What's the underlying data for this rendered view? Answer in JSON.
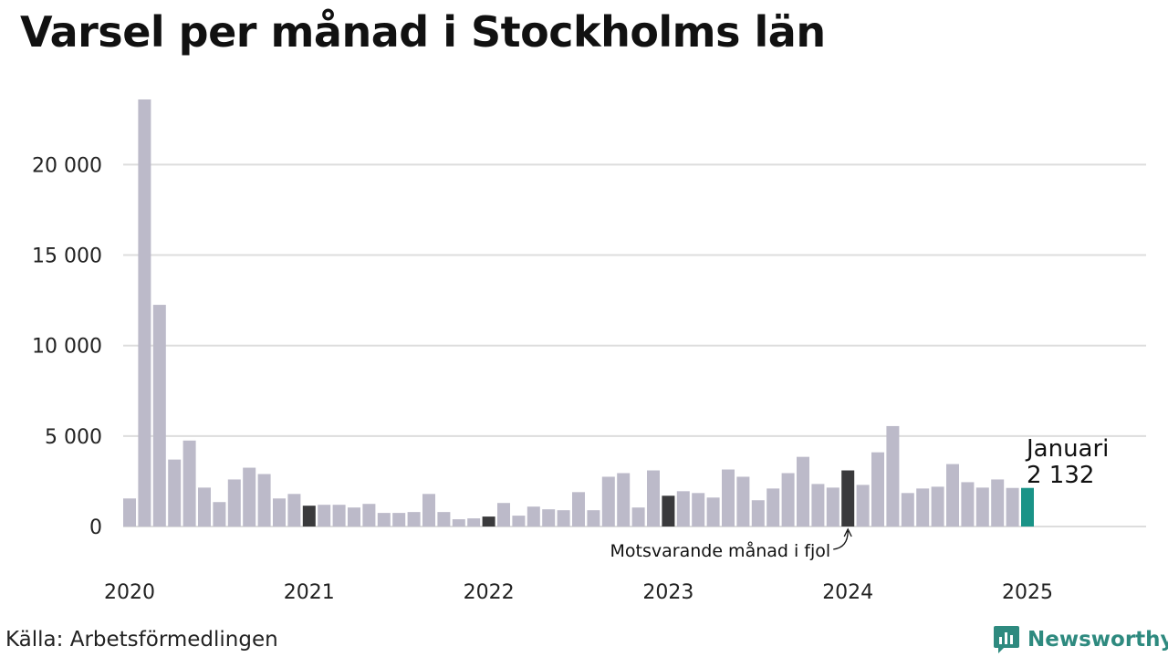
{
  "title": "Varsel per månad i Stockholms län",
  "source": "Källa: Arbetsförmedlingen",
  "brand": "Newsworthy",
  "colors": {
    "bar": "#bcbac9",
    "highlight": "#3a3a3c",
    "current": "#1a9387",
    "grid": "#dddddd",
    "brand": "#2e8a7f"
  },
  "annotations": {
    "current_month": "Januari",
    "current_value": "2 132",
    "previous_year": "Motsvarande månad i fjol"
  },
  "chart_data": {
    "type": "bar",
    "title": "Varsel per månad i Stockholms län",
    "xlabel": "",
    "ylabel": "",
    "ylim": [
      0,
      23700
    ],
    "yticks": [
      0,
      5000,
      10000,
      15000,
      20000
    ],
    "ytick_labels": [
      "0",
      "5 000",
      "10 000",
      "15 000",
      "20 000"
    ],
    "xtick_labels": [
      "2020",
      "2021",
      "2022",
      "2023",
      "2024",
      "2025"
    ],
    "grid": true,
    "start": "2020-01",
    "categories": [
      "2020-01",
      "2020-02",
      "2020-03",
      "2020-04",
      "2020-05",
      "2020-06",
      "2020-07",
      "2020-08",
      "2020-09",
      "2020-10",
      "2020-11",
      "2020-12",
      "2021-01",
      "2021-02",
      "2021-03",
      "2021-04",
      "2021-05",
      "2021-06",
      "2021-07",
      "2021-08",
      "2021-09",
      "2021-10",
      "2021-11",
      "2021-12",
      "2022-01",
      "2022-02",
      "2022-03",
      "2022-04",
      "2022-05",
      "2022-06",
      "2022-07",
      "2022-08",
      "2022-09",
      "2022-10",
      "2022-11",
      "2022-12",
      "2023-01",
      "2023-02",
      "2023-03",
      "2023-04",
      "2023-05",
      "2023-06",
      "2023-07",
      "2023-08",
      "2023-09",
      "2023-10",
      "2023-11",
      "2023-12",
      "2024-01",
      "2024-02",
      "2024-03",
      "2024-04",
      "2024-05",
      "2024-06",
      "2024-07",
      "2024-08",
      "2024-09",
      "2024-10",
      "2024-11",
      "2024-12",
      "2025-01"
    ],
    "values": [
      1550,
      23600,
      12250,
      3700,
      4750,
      2150,
      1350,
      2600,
      3250,
      2900,
      1550,
      1800,
      1150,
      1200,
      1200,
      1050,
      1250,
      750,
      750,
      800,
      1800,
      800,
      400,
      450,
      550,
      1300,
      600,
      1100,
      950,
      900,
      1900,
      900,
      2750,
      2950,
      1050,
      3100,
      1700,
      1950,
      1850,
      1600,
      3150,
      2750,
      1450,
      2100,
      2950,
      3850,
      2350,
      2150,
      3100,
      2300,
      4100,
      5550,
      1850,
      2100,
      2200,
      3450,
      2450,
      2150,
      2600,
      2132,
      2132
    ],
    "highlight": [
      "2021-01",
      "2022-01",
      "2023-01",
      "2024-01"
    ],
    "current": "2025-01"
  }
}
